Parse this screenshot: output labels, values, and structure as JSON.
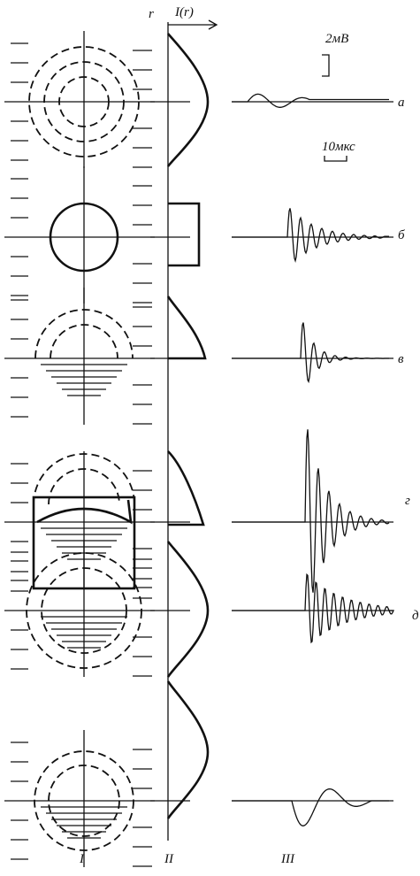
{
  "axis": {
    "r": "r",
    "intensity": "I(r)"
  },
  "scale": {
    "voltage": "2мВ",
    "time": "10мкс"
  },
  "rows": [
    "а",
    "б",
    "в",
    "г",
    "д"
  ],
  "columns": [
    "I",
    "II",
    "III"
  ]
}
